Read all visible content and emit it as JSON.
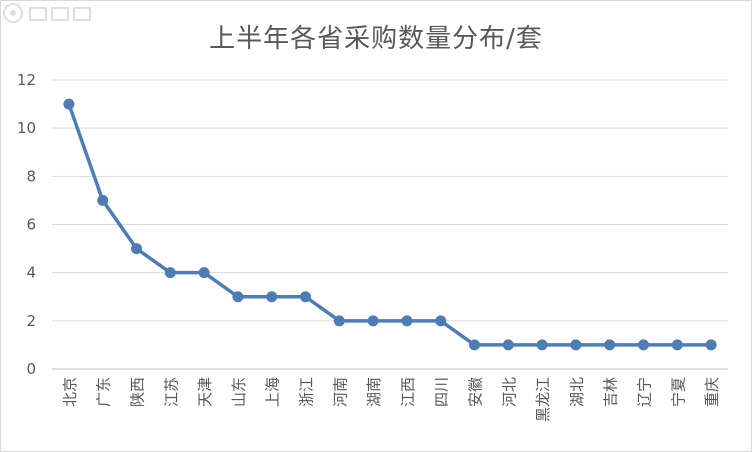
{
  "chart_data": {
    "type": "line",
    "title": "上半年各省采购数量分布/套",
    "xlabel": "",
    "ylabel": "",
    "ylim": [
      0,
      12
    ],
    "yticks": [
      0,
      2,
      4,
      6,
      8,
      10,
      12
    ],
    "grid": true,
    "legend": "none",
    "categories": [
      "北京",
      "广东",
      "陕西",
      "江苏",
      "天津",
      "山东",
      "上海",
      "浙江",
      "河南",
      "湖南",
      "江西",
      "四川",
      "安徽",
      "河北",
      "黑龙江",
      "湖北",
      "吉林",
      "辽宁",
      "宁夏",
      "重庆"
    ],
    "series": [
      {
        "values": [
          11,
          7,
          5,
          4,
          4,
          3,
          3,
          3,
          2,
          2,
          2,
          2,
          1,
          1,
          1,
          1,
          1,
          1,
          1,
          1
        ],
        "color": "#4e7cb4"
      }
    ]
  },
  "colors": {
    "grid": "#d9d9d9",
    "axis": "#bfbfbf",
    "tick_text": "#595959"
  }
}
